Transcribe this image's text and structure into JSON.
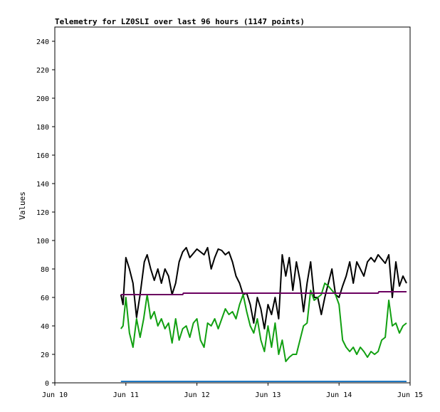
{
  "chart_data": {
    "type": "line",
    "title": "Telemetry for LZ0SLI over last 96 hours (1147 points)",
    "xlabel": "",
    "ylabel": "Values",
    "xlim": [
      0,
      5
    ],
    "ylim": [
      0,
      250
    ],
    "x_ticks": [
      {
        "value": 0,
        "label": "Jun 10"
      },
      {
        "value": 1,
        "label": "Jun 11"
      },
      {
        "value": 2,
        "label": "Jun 12"
      },
      {
        "value": 3,
        "label": "Jun 13"
      },
      {
        "value": 4,
        "label": "Jun 14"
      },
      {
        "value": 5,
        "label": "Jun 15"
      }
    ],
    "y_ticks": [
      0,
      20,
      40,
      60,
      80,
      100,
      120,
      140,
      160,
      180,
      200,
      220,
      240
    ],
    "grid": false,
    "legend": "none",
    "series": [
      {
        "color": "#000000",
        "x": [
          0.93,
          0.96,
          1.0,
          1.05,
          1.1,
          1.15,
          1.2,
          1.26,
          1.3,
          1.35,
          1.4,
          1.45,
          1.5,
          1.55,
          1.6,
          1.65,
          1.7,
          1.75,
          1.8,
          1.85,
          1.9,
          1.95,
          2.0,
          2.05,
          2.1,
          2.15,
          2.2,
          2.25,
          2.3,
          2.35,
          2.4,
          2.45,
          2.5,
          2.55,
          2.6,
          2.65,
          2.7,
          2.75,
          2.8,
          2.85,
          2.9,
          2.95,
          3.0,
          3.05,
          3.1,
          3.15,
          3.2,
          3.25,
          3.3,
          3.35,
          3.4,
          3.45,
          3.5,
          3.55,
          3.6,
          3.65,
          3.7,
          3.75,
          3.8,
          3.85,
          3.9,
          3.95,
          4.0,
          4.05,
          4.1,
          4.15,
          4.2,
          4.25,
          4.3,
          4.35,
          4.4,
          4.45,
          4.5,
          4.55,
          4.6,
          4.65,
          4.7,
          4.75,
          4.8,
          4.85,
          4.9,
          4.95
        ],
        "y": [
          62,
          55,
          88,
          80,
          70,
          46,
          62,
          85,
          90,
          80,
          72,
          80,
          70,
          80,
          75,
          62,
          70,
          85,
          92,
          95,
          88,
          91,
          94,
          92,
          90,
          95,
          80,
          88,
          94,
          93,
          90,
          92,
          85,
          75,
          70,
          62,
          63,
          55,
          42,
          60,
          52,
          38,
          55,
          48,
          60,
          45,
          90,
          75,
          88,
          65,
          85,
          72,
          50,
          70,
          85,
          60,
          60,
          48,
          60,
          70,
          80,
          62,
          60,
          68,
          75,
          85,
          70,
          85,
          80,
          75,
          85,
          88,
          85,
          90,
          87,
          84,
          90,
          60,
          85,
          68,
          75,
          70
        ]
      },
      {
        "color": "#11a011",
        "x": [
          0.93,
          0.96,
          1.0,
          1.05,
          1.1,
          1.15,
          1.2,
          1.25,
          1.3,
          1.35,
          1.4,
          1.45,
          1.5,
          1.55,
          1.6,
          1.65,
          1.7,
          1.75,
          1.8,
          1.85,
          1.9,
          1.95,
          2.0,
          2.05,
          2.1,
          2.15,
          2.2,
          2.25,
          2.3,
          2.35,
          2.4,
          2.45,
          2.5,
          2.55,
          2.6,
          2.65,
          2.7,
          2.75,
          2.8,
          2.85,
          2.9,
          2.95,
          3.0,
          3.05,
          3.1,
          3.15,
          3.2,
          3.25,
          3.3,
          3.35,
          3.4,
          3.45,
          3.5,
          3.55,
          3.6,
          3.65,
          3.7,
          3.75,
          3.8,
          3.85,
          3.9,
          3.95,
          4.0,
          4.05,
          4.1,
          4.15,
          4.2,
          4.25,
          4.3,
          4.35,
          4.4,
          4.45,
          4.5,
          4.55,
          4.6,
          4.65,
          4.7,
          4.75,
          4.8,
          4.85,
          4.9,
          4.95
        ],
        "y": [
          38,
          40,
          60,
          35,
          25,
          45,
          32,
          45,
          62,
          45,
          50,
          40,
          45,
          38,
          42,
          28,
          45,
          30,
          38,
          40,
          32,
          42,
          45,
          30,
          25,
          42,
          40,
          45,
          38,
          45,
          52,
          48,
          50,
          45,
          55,
          62,
          50,
          40,
          35,
          45,
          30,
          22,
          40,
          25,
          42,
          20,
          30,
          15,
          18,
          20,
          20,
          30,
          40,
          42,
          65,
          58,
          60,
          62,
          70,
          68,
          65,
          62,
          55,
          30,
          25,
          22,
          25,
          20,
          25,
          22,
          18,
          22,
          20,
          22,
          30,
          32,
          58,
          40,
          42,
          35,
          40,
          42
        ]
      },
      {
        "color": "#6b0060",
        "x": [
          0.93,
          1.2,
          1.5,
          1.8,
          1.81,
          2.5,
          3.0,
          3.5,
          4.0,
          4.5,
          4.55,
          4.56,
          4.8,
          4.95
        ],
        "y": [
          62,
          62,
          62,
          62,
          63,
          63,
          63,
          63,
          63,
          63,
          63,
          64,
          64,
          64
        ]
      },
      {
        "color": "#1f77c0",
        "x": [
          0.93,
          2.0,
          3.0,
          4.0,
          4.95
        ],
        "y": [
          1,
          1,
          1,
          1,
          1
        ]
      }
    ]
  }
}
